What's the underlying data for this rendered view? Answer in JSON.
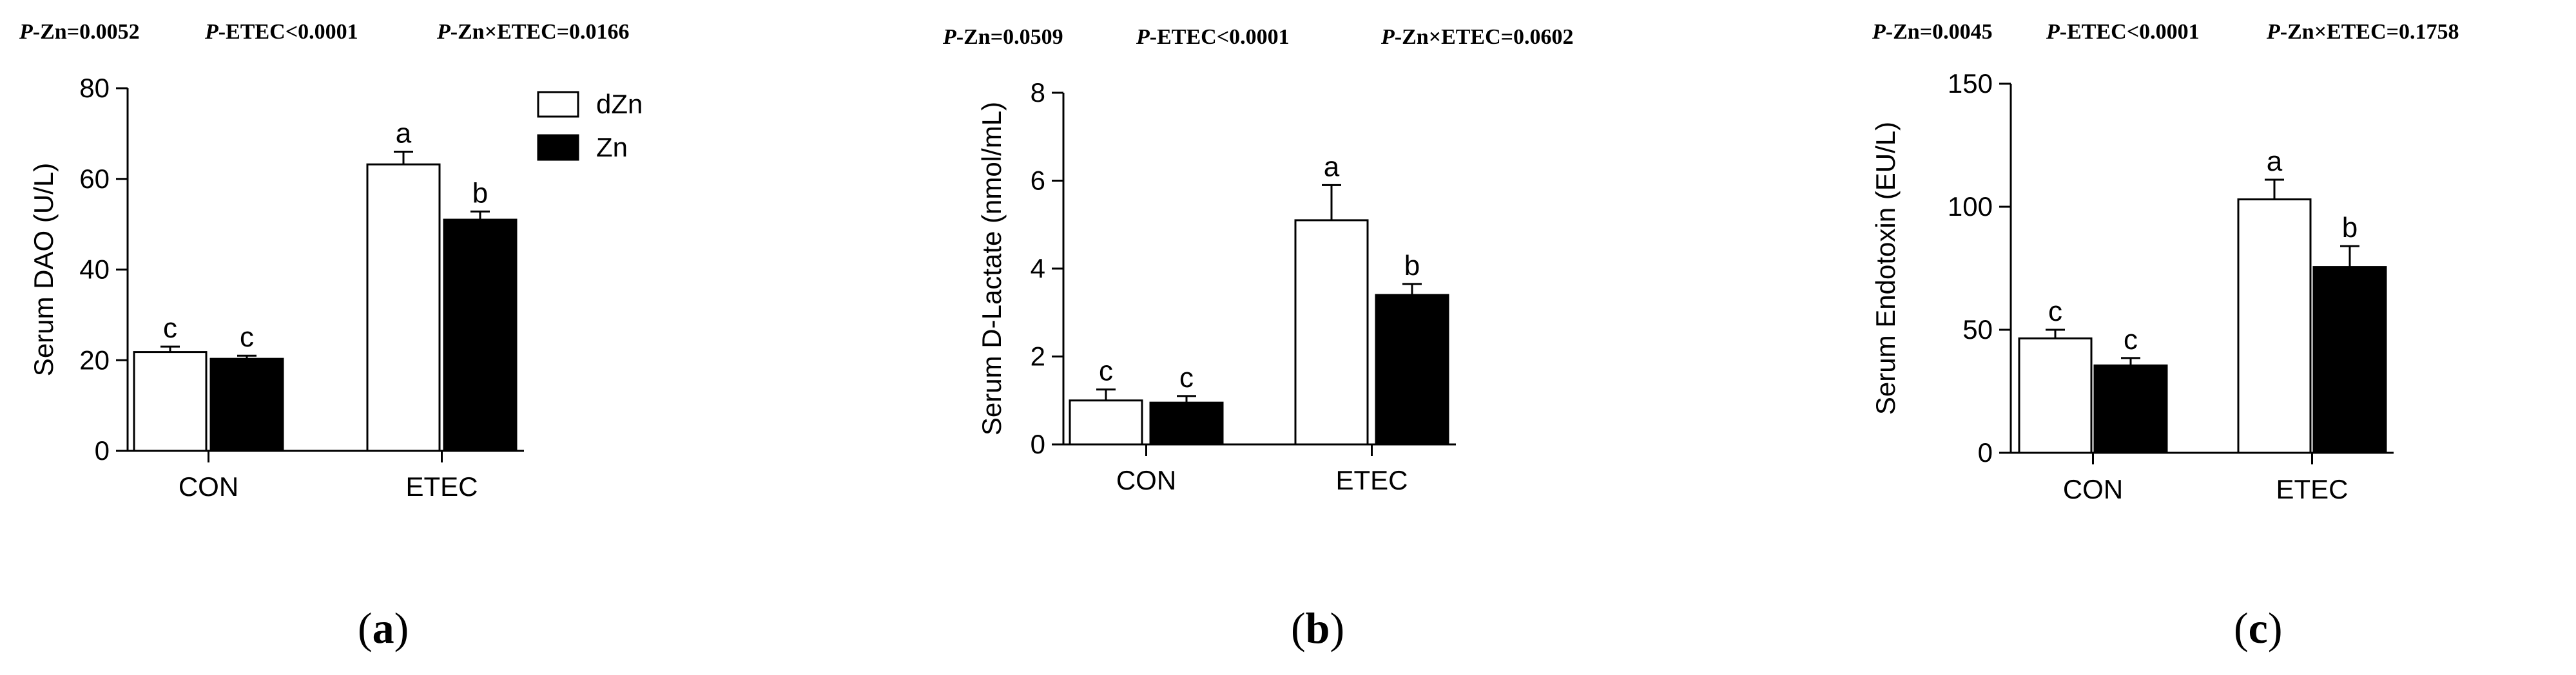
{
  "chart_data": [
    {
      "type": "bar",
      "panel_label": "a",
      "stats": {
        "zn_prefix": "P",
        "zn_text": "-Zn=0.0052",
        "etec_prefix": "P",
        "etec_text": "-ETEC<0.0001",
        "inter_prefix": "P",
        "inter_text": "-Zn×ETEC=0.0166"
      },
      "ylabel": "Serum DAO (U/L)",
      "xlabel": "",
      "ylim": [
        0,
        80
      ],
      "yticks": [
        0,
        20,
        40,
        60,
        80
      ],
      "categories": [
        "CON",
        "ETEC"
      ],
      "series": [
        {
          "name": "dZn",
          "fill": "#ffffff",
          "values": [
            21.8,
            63.2
          ],
          "errors": [
            1.2,
            2.8
          ],
          "letters": [
            "c",
            "a"
          ]
        },
        {
          "name": "Zn",
          "fill": "#000000",
          "values": [
            20.3,
            51.0
          ],
          "errors": [
            0.7,
            1.8
          ],
          "letters": [
            "c",
            "b"
          ]
        }
      ],
      "legend": true,
      "legend_position": "top-right"
    },
    {
      "type": "bar",
      "panel_label": "b",
      "stats": {
        "zn_prefix": "P",
        "zn_text": "-Zn=0.0509",
        "etec_prefix": "P",
        "etec_text": "-ETEC<0.0001",
        "inter_prefix": "P",
        "inter_text": "-Zn×ETEC=0.0602"
      },
      "ylabel": "Serum D-Lactate (nmol/mL)",
      "xlabel": "",
      "ylim": [
        0,
        8
      ],
      "yticks": [
        0,
        2,
        4,
        6,
        8
      ],
      "categories": [
        "CON",
        "ETEC"
      ],
      "series": [
        {
          "name": "dZn",
          "fill": "#ffffff",
          "values": [
            1.0,
            5.1
          ],
          "errors": [
            0.25,
            0.8
          ],
          "letters": [
            "c",
            "a"
          ]
        },
        {
          "name": "Zn",
          "fill": "#000000",
          "values": [
            0.95,
            3.4
          ],
          "errors": [
            0.15,
            0.25
          ],
          "letters": [
            "c",
            "b"
          ]
        }
      ],
      "legend": false
    },
    {
      "type": "bar",
      "panel_label": "c",
      "stats": {
        "zn_prefix": "P",
        "zn_text": "-Zn=0.0045",
        "etec_prefix": "P",
        "etec_text": "-ETEC<0.0001",
        "inter_prefix": "P",
        "inter_text": "-Zn×ETEC=0.1758"
      },
      "ylabel": "Serum Endotoxin (EU/L)",
      "xlabel": "",
      "ylim": [
        0,
        150
      ],
      "yticks": [
        0,
        50,
        100,
        150
      ],
      "categories": [
        "CON",
        "ETEC"
      ],
      "series": [
        {
          "name": "dZn",
          "fill": "#ffffff",
          "values": [
            46.5,
            103.0
          ],
          "errors": [
            3.5,
            8.0
          ],
          "letters": [
            "c",
            "a"
          ]
        },
        {
          "name": "Zn",
          "fill": "#000000",
          "values": [
            35.5,
            75.5
          ],
          "errors": [
            3.0,
            8.5
          ],
          "letters": [
            "c",
            "b"
          ]
        }
      ],
      "legend": false
    }
  ]
}
